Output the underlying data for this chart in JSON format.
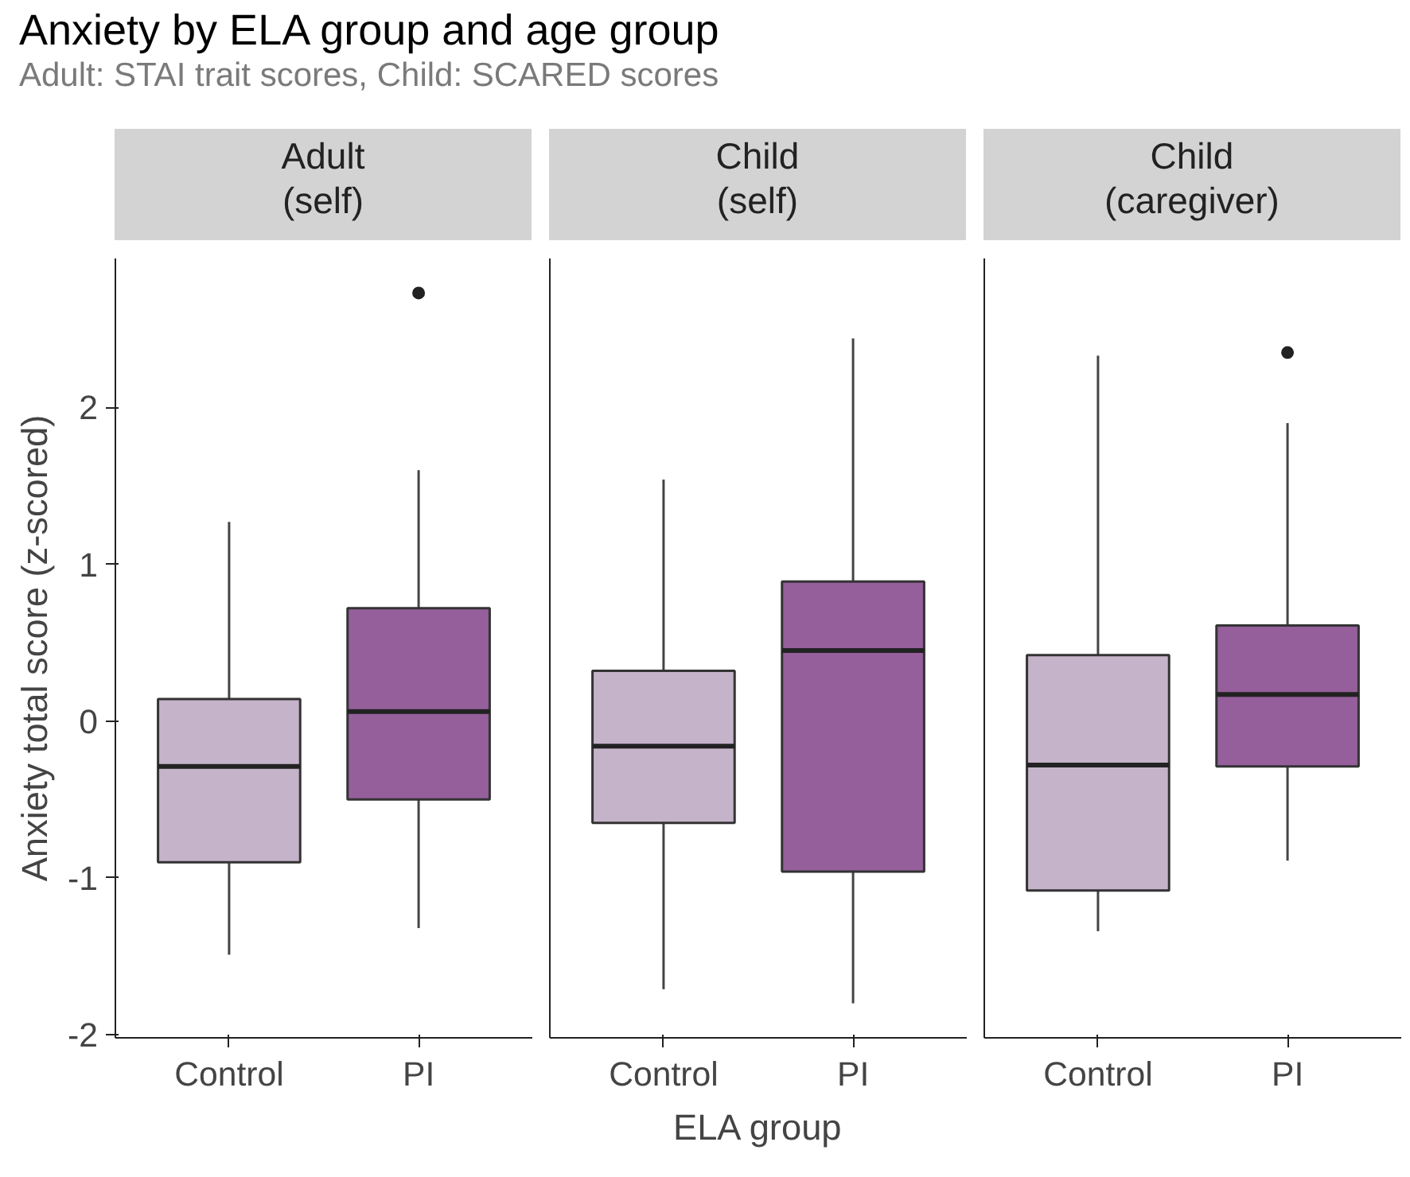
{
  "chart_data": [
    {
      "type": "other",
      "title": "Anxiety by ELA group and age group",
      "subtitle": "Adult: STAI trait scores, Child: SCARED scores"
    },
    {
      "type": "box",
      "title": "Adult\n(self)",
      "ylabel": "Anxiety total score (z-scored)",
      "categories": [
        "Control",
        "PI"
      ],
      "colors": [
        "#c5b3c9",
        "#955f9b"
      ],
      "ylim": [
        -2.02,
        2.95
      ],
      "yticks": [
        -2,
        -1,
        0,
        1,
        2
      ],
      "boxes": [
        {
          "low": -1.49,
          "q1": -0.9,
          "median": -0.29,
          "q3": 0.14,
          "high": 1.27
        },
        {
          "low": -1.32,
          "q1": -0.5,
          "median": 0.06,
          "q3": 0.72,
          "high": 1.6,
          "outliers": [
            2.73
          ]
        }
      ]
    },
    {
      "type": "box",
      "title": "Child\n(self)",
      "xlabel": "ELA group",
      "categories": [
        "Control",
        "PI"
      ],
      "colors": [
        "#c5b3c9",
        "#955f9b"
      ],
      "ylim": [
        -2.02,
        2.95
      ],
      "yticks": [
        -2,
        -1,
        0,
        1,
        2
      ],
      "tick_labels": "x",
      "boxes": [
        {
          "low": -1.71,
          "q1": -0.65,
          "median": -0.16,
          "q3": 0.32,
          "high": 1.54
        },
        {
          "low": -1.8,
          "q1": -0.96,
          "median": 0.45,
          "q3": 0.89,
          "high": 2.44
        }
      ]
    },
    {
      "type": "box",
      "title": "Child\n(caregiver)",
      "categories": [
        "Control",
        "PI"
      ],
      "colors": [
        "#c5b3c9",
        "#955f9b"
      ],
      "ylim": [
        -2.02,
        2.95
      ],
      "yticks": [
        -2,
        -1,
        0,
        1,
        2
      ],
      "tick_labels": "x",
      "boxes": [
        {
          "low": -1.34,
          "q1": -1.08,
          "median": -0.28,
          "q3": 0.42,
          "high": 2.33
        },
        {
          "low": -0.89,
          "q1": -0.29,
          "median": 0.17,
          "q3": 0.61,
          "high": 1.9,
          "outliers": [
            2.35
          ]
        }
      ]
    }
  ]
}
